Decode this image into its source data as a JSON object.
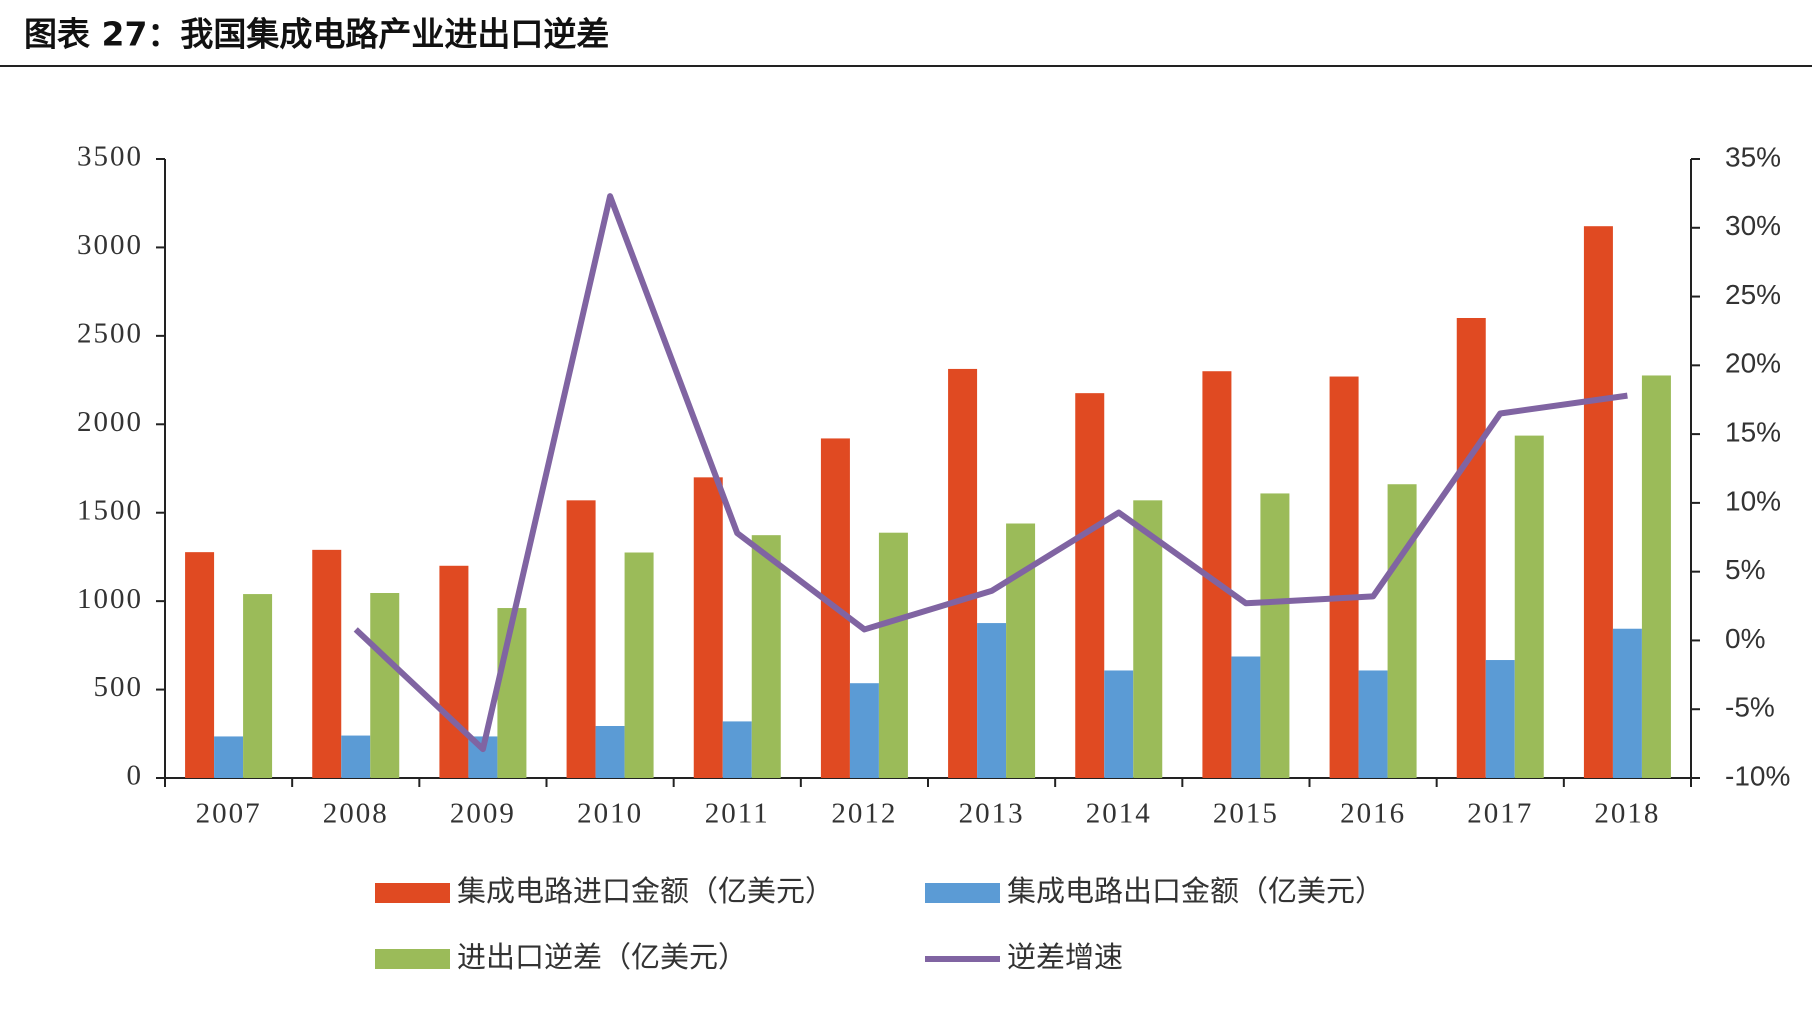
{
  "chart_data": {
    "type": "bar",
    "title": "图表 27：我国集成电路产业进出口逆差",
    "categories": [
      "2007",
      "2008",
      "2009",
      "2010",
      "2011",
      "2012",
      "2013",
      "2014",
      "2015",
      "2016",
      "2017",
      "2018"
    ],
    "series": [
      {
        "name": "集成电路进口金额（亿美元）",
        "color": "#E04A22",
        "values": [
          1277,
          1290,
          1200,
          1570,
          1700,
          1920,
          2313,
          2176,
          2300,
          2270,
          2601,
          3120
        ]
      },
      {
        "name": "集成电路出口金额（亿美元）",
        "color": "#5B9BD5",
        "values": [
          235,
          240,
          235,
          294,
          320,
          536,
          876,
          608,
          687,
          608,
          667,
          844
        ]
      },
      {
        "name": "进出口逆差（亿美元）",
        "color": "#9BBB59",
        "values": [
          1040,
          1046,
          961,
          1275,
          1373,
          1387,
          1439,
          1570,
          1609,
          1661,
          1936,
          2276
        ]
      },
      {
        "name": "逆差增速",
        "color": "#8064A2",
        "type": "line",
        "axis": "y2",
        "values": [
          null,
          0.8,
          -7.9,
          32.3,
          7.8,
          0.8,
          3.6,
          9.3,
          2.7,
          3.2,
          16.5,
          17.8
        ]
      }
    ],
    "ylim": [
      0,
      3500
    ],
    "yticks": [
      0,
      500,
      1000,
      1500,
      2000,
      2500,
      3000,
      3500
    ],
    "y2lim": [
      -10,
      35
    ],
    "y2ticks": [
      {
        "value": -10,
        "label": "-10%"
      },
      {
        "value": -5,
        "label": "-5%"
      },
      {
        "value": 0,
        "label": "0%"
      },
      {
        "value": 5,
        "label": "5%"
      },
      {
        "value": 10,
        "label": "10%"
      },
      {
        "value": 15,
        "label": "15%"
      },
      {
        "value": 20,
        "label": "20%"
      },
      {
        "value": 25,
        "label": "25%"
      },
      {
        "value": 30,
        "label": "30%"
      },
      {
        "value": 35,
        "label": "35%"
      }
    ],
    "grid": false,
    "legend": "bottom"
  }
}
